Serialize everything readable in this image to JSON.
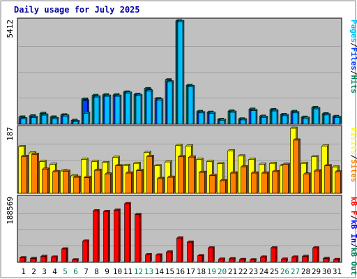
{
  "title": "Daily usage for July 2025",
  "colors": {
    "pages": "#00c0ff",
    "files": "#0040ff",
    "hits": "#00805c",
    "visits": "#ffff00",
    "sites": "#ff8000",
    "kbf": "#ff0000",
    "kbin": "#0000ff",
    "kbout": "#00805c",
    "panel_bg": "#c0c0c0",
    "weekend_label": "#00805c",
    "weekday_label": "#000000"
  },
  "chart_data": [
    {
      "type": "bar",
      "panel": "top",
      "ymax_label": "5412",
      "ylim": [
        0,
        5412
      ],
      "right_label": [
        {
          "text": "Pages",
          "color_key": "pages"
        },
        {
          "text": "/",
          "color_key": "weekday_label"
        },
        {
          "text": "Files",
          "color_key": "files"
        },
        {
          "text": "/",
          "color_key": "weekday_label"
        },
        {
          "text": "Hits",
          "color_key": "hits"
        }
      ],
      "categories": [
        "1",
        "2",
        "3",
        "4",
        "5",
        "6",
        "7",
        "8",
        "9",
        "10",
        "11",
        "12",
        "13",
        "14",
        "15",
        "16",
        "17",
        "18",
        "19",
        "20",
        "21",
        "22",
        "23",
        "24",
        "25",
        "26",
        "27",
        "28",
        "29",
        "30",
        "31"
      ],
      "series": [
        {
          "name": "Hits",
          "color_key": "hits",
          "values": [
            370,
            430,
            560,
            370,
            480,
            190,
            1310,
            1500,
            1530,
            1530,
            1680,
            1560,
            1860,
            1330,
            2320,
            5412,
            2030,
            660,
            620,
            240,
            680,
            270,
            780,
            410,
            760,
            500,
            660,
            360,
            870,
            540,
            400
          ]
        },
        {
          "name": "Files",
          "color_key": "files",
          "values": [
            280,
            350,
            480,
            290,
            430,
            140,
            1220,
            1420,
            1460,
            1460,
            1620,
            1500,
            1780,
            1260,
            2210,
            5370,
            1960,
            590,
            560,
            190,
            620,
            220,
            710,
            350,
            690,
            440,
            590,
            300,
            800,
            480,
            340
          ]
        },
        {
          "name": "Pages",
          "color_key": "pages",
          "values": [
            270,
            340,
            470,
            280,
            420,
            130,
            570,
            1420,
            1460,
            1460,
            1620,
            1500,
            1730,
            1260,
            2210,
            5370,
            1960,
            590,
            560,
            190,
            620,
            220,
            710,
            350,
            690,
            440,
            590,
            300,
            800,
            480,
            340
          ]
        }
      ]
    },
    {
      "type": "bar",
      "panel": "middle",
      "ymax_label": "187",
      "ylim": [
        0,
        187
      ],
      "right_label": [
        {
          "text": "Visits",
          "color_key": "visits"
        },
        {
          "text": "/",
          "color_key": "weekday_label"
        },
        {
          "text": "Sites",
          "color_key": "sites"
        }
      ],
      "categories": [
        "1",
        "2",
        "3",
        "4",
        "5",
        "6",
        "7",
        "8",
        "9",
        "10",
        "11",
        "12",
        "13",
        "14",
        "15",
        "16",
        "17",
        "18",
        "19",
        "20",
        "21",
        "22",
        "23",
        "24",
        "25",
        "26",
        "27",
        "28",
        "29",
        "30",
        "31"
      ],
      "series": [
        {
          "name": "Visits",
          "color_key": "visits",
          "values": [
            134,
            116,
            91,
            83,
            64,
            50,
            97,
            91,
            88,
            103,
            80,
            86,
            117,
            79,
            90,
            137,
            136,
            97,
            91,
            85,
            122,
            107,
            97,
            83,
            86,
            80,
            187,
            86,
            105,
            136,
            75
          ]
        },
        {
          "name": "Sites",
          "color_key": "sites",
          "values": [
            106,
            112,
            69,
            62,
            63,
            46,
            45,
            66,
            55,
            79,
            58,
            65,
            106,
            42,
            46,
            105,
            104,
            60,
            51,
            36,
            58,
            76,
            58,
            58,
            62,
            83,
            153,
            55,
            64,
            79,
            61
          ]
        }
      ]
    },
    {
      "type": "bar",
      "panel": "bottom",
      "ymax_label": "188569",
      "ylim": [
        0,
        188569
      ],
      "right_label": [
        {
          "text": "kB F",
          "color_key": "kbf"
        },
        {
          "text": "/",
          "color_key": "weekday_label"
        },
        {
          "text": "kB In",
          "color_key": "kbin"
        },
        {
          "text": "/",
          "color_key": "weekday_label"
        },
        {
          "text": "kB Out",
          "color_key": "kbout"
        }
      ],
      "categories": [
        "1",
        "2",
        "3",
        "4",
        "5",
        "6",
        "7",
        "8",
        "9",
        "10",
        "11",
        "12",
        "13",
        "14",
        "15",
        "16",
        "17",
        "18",
        "19",
        "20",
        "21",
        "22",
        "23",
        "24",
        "25",
        "26",
        "27",
        "28",
        "29",
        "30",
        "31"
      ],
      "series": [
        {
          "name": "kB F",
          "color_key": "kbf",
          "values": [
            13000,
            11000,
            17000,
            15000,
            39000,
            7000,
            62000,
            151000,
            149000,
            153000,
            172000,
            140000,
            22000,
            21000,
            30000,
            71000,
            59000,
            19000,
            42000,
            9000,
            10000,
            8000,
            7000,
            15000,
            42000,
            9000,
            15000,
            17000,
            42000,
            11000,
            8000
          ]
        }
      ]
    }
  ],
  "x_axis": {
    "labels": [
      "1",
      "2",
      "3",
      "4",
      "5",
      "6",
      "7",
      "8",
      "9",
      "10",
      "11",
      "12",
      "13",
      "14",
      "15",
      "16",
      "17",
      "18",
      "19",
      "20",
      "21",
      "22",
      "23",
      "24",
      "25",
      "26",
      "27",
      "28",
      "29",
      "30",
      "31"
    ],
    "weekend": [
      false,
      false,
      false,
      false,
      true,
      true,
      false,
      false,
      false,
      false,
      false,
      true,
      true,
      false,
      false,
      false,
      false,
      false,
      true,
      true,
      false,
      false,
      false,
      false,
      false,
      true,
      true,
      false,
      false,
      false,
      false
    ]
  }
}
